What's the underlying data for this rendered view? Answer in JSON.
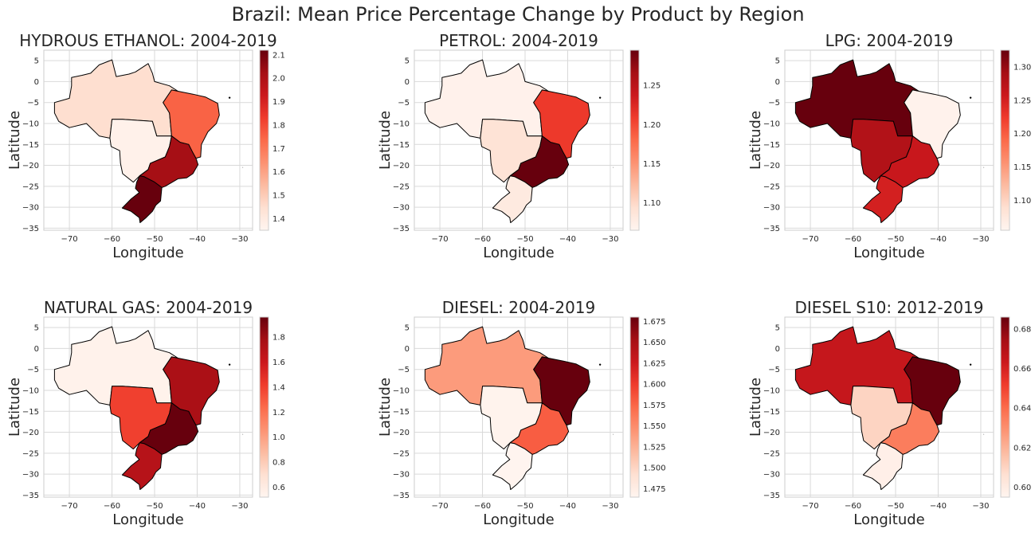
{
  "figure": {
    "title": "Brazil: Mean Price Percentage Change by Product by Region"
  },
  "chart_data": [
    {
      "type": "choropleth",
      "title": "HYDROUS ETHANOL: 2004-2019",
      "xlabel": "Longitude",
      "ylabel": "Latitude",
      "xlim": [
        -76,
        -27
      ],
      "ylim": [
        -35.5,
        7.5
      ],
      "xticks": [
        -70,
        -60,
        -50,
        -40,
        -30
      ],
      "yticks": [
        5,
        0,
        -5,
        -10,
        -15,
        -20,
        -25,
        -30,
        -35
      ],
      "colormap": "Reds",
      "colorbar": {
        "min": 1.35,
        "max": 2.12,
        "ticks": [
          1.4,
          1.5,
          1.6,
          1.7,
          1.8,
          1.9,
          2.0,
          2.1
        ],
        "tick_decimals": 1
      },
      "grid": true,
      "regions": [
        {
          "name": "North",
          "value": 1.45
        },
        {
          "name": "Northeast",
          "value": 1.75
        },
        {
          "name": "Center-West",
          "value": 1.37
        },
        {
          "name": "Southeast",
          "value": 2.02
        },
        {
          "name": "South",
          "value": 2.12
        }
      ]
    },
    {
      "type": "choropleth",
      "title": "PETROL: 2004-2019",
      "xlabel": "Longitude",
      "ylabel": "Latitude",
      "xlim": [
        -76,
        -27
      ],
      "ylim": [
        -35.5,
        7.5
      ],
      "xticks": [
        -70,
        -60,
        -50,
        -40,
        -30
      ],
      "yticks": [
        5,
        0,
        -5,
        -10,
        -15,
        -20,
        -25,
        -30,
        -35
      ],
      "colormap": "Reds",
      "colorbar": {
        "min": 1.065,
        "max": 1.295,
        "ticks": [
          1.1,
          1.15,
          1.2,
          1.25
        ],
        "tick_decimals": 2
      },
      "grid": true,
      "regions": [
        {
          "name": "North",
          "value": 1.07
        },
        {
          "name": "Northeast",
          "value": 1.21
        },
        {
          "name": "Center-West",
          "value": 1.09
        },
        {
          "name": "Southeast",
          "value": 1.295
        },
        {
          "name": "South",
          "value": 1.08
        }
      ]
    },
    {
      "type": "choropleth",
      "title": "LPG: 2004-2019",
      "xlabel": "Longitude",
      "ylabel": "Latitude",
      "xlim": [
        -76,
        -27
      ],
      "ylim": [
        -35.5,
        7.5
      ],
      "xticks": [
        -70,
        -60,
        -50,
        -40,
        -30
      ],
      "yticks": [
        5,
        0,
        -5,
        -10,
        -15,
        -20,
        -25,
        -30,
        -35
      ],
      "colormap": "Reds",
      "colorbar": {
        "min": 1.055,
        "max": 1.325,
        "ticks": [
          1.1,
          1.15,
          1.2,
          1.25,
          1.3
        ],
        "tick_decimals": 2
      },
      "grid": true,
      "regions": [
        {
          "name": "North",
          "value": 1.325
        },
        {
          "name": "Northeast",
          "value": 1.06
        },
        {
          "name": "Center-West",
          "value": 1.28
        },
        {
          "name": "Southeast",
          "value": 1.26
        },
        {
          "name": "South",
          "value": 1.25
        }
      ]
    },
    {
      "type": "choropleth",
      "title": "NATURAL GAS: 2004-2019",
      "xlabel": "Longitude",
      "ylabel": "Latitude",
      "xlim": [
        -76,
        -27
      ],
      "ylim": [
        -35.5,
        7.5
      ],
      "xticks": [
        -70,
        -60,
        -50,
        -40,
        -30
      ],
      "yticks": [
        5,
        0,
        -5,
        -10,
        -15,
        -20,
        -25,
        -30,
        -35
      ],
      "colormap": "Reds",
      "colorbar": {
        "min": 0.52,
        "max": 1.96,
        "ticks": [
          0.6,
          0.8,
          1.0,
          1.2,
          1.4,
          1.6,
          1.8
        ],
        "tick_decimals": 1
      },
      "grid": true,
      "regions": [
        {
          "name": "North",
          "value": 0.55
        },
        {
          "name": "Northeast",
          "value": 1.75
        },
        {
          "name": "Center-West",
          "value": 1.4
        },
        {
          "name": "Southeast",
          "value": 1.96
        },
        {
          "name": "South",
          "value": 1.7
        }
      ]
    },
    {
      "type": "choropleth",
      "title": "DIESEL: 2004-2019",
      "xlabel": "Longitude",
      "ylabel": "Latitude",
      "xlim": [
        -76,
        -27
      ],
      "ylim": [
        -35.5,
        7.5
      ],
      "xticks": [
        -70,
        -60,
        -50,
        -40,
        -30
      ],
      "yticks": [
        5,
        0,
        -5,
        -10,
        -15,
        -20,
        -25,
        -30,
        -35
      ],
      "colormap": "Reds",
      "colorbar": {
        "min": 1.465,
        "max": 1.68,
        "ticks": [
          1.475,
          1.5,
          1.525,
          1.55,
          1.575,
          1.6,
          1.625,
          1.65,
          1.675
        ],
        "tick_decimals": 3
      },
      "grid": true,
      "regions": [
        {
          "name": "North",
          "value": 1.54
        },
        {
          "name": "Northeast",
          "value": 1.68
        },
        {
          "name": "Center-West",
          "value": 1.468
        },
        {
          "name": "Southeast",
          "value": 1.58
        },
        {
          "name": "South",
          "value": 1.466
        }
      ]
    },
    {
      "type": "choropleth",
      "title": "DIESEL S10: 2012-2019",
      "xlabel": "Longitude",
      "ylabel": "Latitude",
      "xlim": [
        -76,
        -27
      ],
      "ylim": [
        -35.5,
        7.5
      ],
      "xticks": [
        -70,
        -60,
        -50,
        -40,
        -30
      ],
      "yticks": [
        5,
        0,
        -5,
        -10,
        -15,
        -20,
        -25,
        -30,
        -35
      ],
      "colormap": "Reds",
      "colorbar": {
        "min": 0.595,
        "max": 0.686,
        "ticks": [
          0.6,
          0.62,
          0.64,
          0.66,
          0.68
        ],
        "tick_decimals": 2
      },
      "grid": true,
      "regions": [
        {
          "name": "North",
          "value": 0.665
        },
        {
          "name": "Northeast",
          "value": 0.686
        },
        {
          "name": "Center-West",
          "value": 0.61
        },
        {
          "name": "Southeast",
          "value": 0.635
        },
        {
          "name": "South",
          "value": 0.598
        }
      ]
    }
  ]
}
